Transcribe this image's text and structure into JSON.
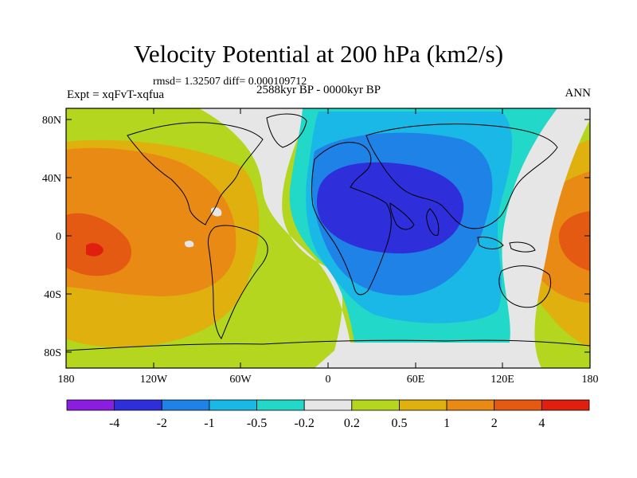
{
  "title": "Velocity Potential at 200 hPa (km2/s)",
  "stats": "rmsd= 1.32507 diff= 0.000109712",
  "period": "2588kyr BP - 0000kyr BP",
  "experiment": "Expt = xqFvT-xqfua",
  "season": "ANN",
  "lat_ticks": [
    "80N",
    "40N",
    "0",
    "40S",
    "80S"
  ],
  "lon_ticks": [
    "180",
    "120W",
    "60W",
    "0",
    "60E",
    "120E",
    "180"
  ],
  "colorbar": {
    "labels": [
      "-4",
      "-2",
      "-1",
      "-0.5",
      "-0.2",
      "0.2",
      "0.5",
      "1",
      "2",
      "4"
    ],
    "colors": [
      "#8a1de0",
      "#2e2edb",
      "#1e82e6",
      "#1ab8e6",
      "#22d8c8",
      "#e6e6e6",
      "#b4d61e",
      "#e0b00e",
      "#e98a14",
      "#e55a12",
      "#e01f0f"
    ]
  }
}
